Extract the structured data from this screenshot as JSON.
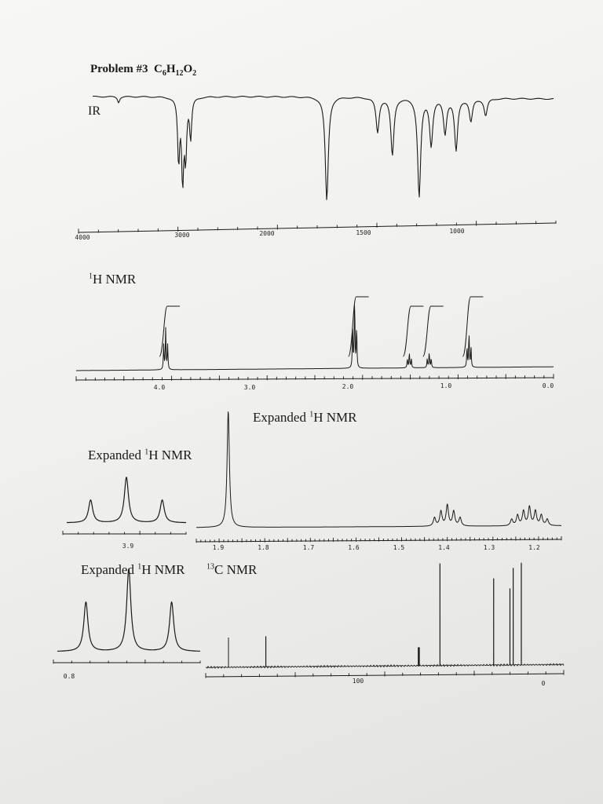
{
  "title": {
    "problem": "Problem #3",
    "formula_c": "C",
    "formula_c_sub": "6",
    "formula_h": "H",
    "formula_h_sub": "12",
    "formula_o": "O",
    "formula_o_sub": "2"
  },
  "labels": {
    "ir": "IR",
    "h_sup": "1",
    "h_nmr": "H NMR",
    "expanded": "Expanded ",
    "c_sup": "13",
    "c_nmr": "C NMR"
  },
  "colors": {
    "ink": "#1a1a1a",
    "paper": "#f4f4f2"
  },
  "chart_data": [
    {
      "type": "line",
      "name": "IR",
      "title": "IR",
      "xlabel": "",
      "ylabel": "",
      "x_ticks": [
        "4000",
        "3000",
        "2000",
        "1500",
        "1000"
      ],
      "xlim": [
        4000,
        500
      ],
      "scale_break_at": 2000,
      "absorptions": [
        {
          "x": 3600,
          "depth": 0.05
        },
        {
          "x": 3000,
          "depth": 0.55
        },
        {
          "x": 2960,
          "depth": 0.7
        },
        {
          "x": 2930,
          "depth": 0.5
        },
        {
          "x": 2880,
          "depth": 0.35
        },
        {
          "x": 1740,
          "depth": 0.9
        },
        {
          "x": 1465,
          "depth": 0.3
        },
        {
          "x": 1385,
          "depth": 0.5
        },
        {
          "x": 1240,
          "depth": 0.85
        },
        {
          "x": 1175,
          "depth": 0.4
        },
        {
          "x": 1100,
          "depth": 0.3
        },
        {
          "x": 1040,
          "depth": 0.45
        },
        {
          "x": 960,
          "depth": 0.2
        },
        {
          "x": 880,
          "depth": 0.15
        }
      ]
    },
    {
      "type": "line",
      "name": "1H NMR",
      "title": "1H NMR",
      "xlabel": "",
      "ylabel": "",
      "x_ticks": [
        "4.0",
        "3.0",
        "2.0",
        "1.0",
        "0.0"
      ],
      "xlim": [
        4.8,
        0
      ],
      "peaks": [
        {
          "ppm": 3.9,
          "height": 0.55,
          "integral": 2
        },
        {
          "ppm": 2.0,
          "height": 0.9,
          "integral": 3
        },
        {
          "ppm": 1.45,
          "height": 0.2,
          "integral": 2
        },
        {
          "ppm": 1.25,
          "height": 0.2,
          "integral": 2
        },
        {
          "ppm": 0.85,
          "height": 0.45,
          "integral": 3
        }
      ]
    },
    {
      "type": "line",
      "name": "Expanded 1H NMR 3.9",
      "title": "Expanded 1H NMR",
      "x_ticks": [
        "3.9"
      ],
      "multiplet": "triplet",
      "center": 3.9,
      "heights": [
        0.5,
        1.0,
        0.5
      ]
    },
    {
      "type": "line",
      "name": "Expanded 1H NMR 1.2-1.9",
      "title": "Expanded 1H NMR",
      "x_ticks": [
        "1.9",
        "1.8",
        "1.7",
        "1.6",
        "1.5",
        "1.4",
        "1.3",
        "1.2"
      ],
      "xlim": [
        1.95,
        1.15
      ],
      "peaks": [
        {
          "ppm": 1.88,
          "height": 1.0
        },
        {
          "ppm": 1.4,
          "height": 0.18,
          "multiplet": "pentet"
        },
        {
          "ppm": 1.22,
          "height": 0.18,
          "multiplet": "sextet"
        }
      ]
    },
    {
      "type": "line",
      "name": "Expanded 1H NMR 0.8",
      "title": "Expanded 1H NMR",
      "x_ticks": [
        "0.8"
      ],
      "multiplet": "triplet",
      "center": 0.85,
      "heights": [
        0.6,
        1.0,
        0.6
      ]
    },
    {
      "type": "bar",
      "name": "13C NMR",
      "title": "13C NMR",
      "x_ticks": [
        "100",
        "0"
      ],
      "xlim": [
        220,
        0
      ],
      "peaks": [
        {
          "ppm": 171,
          "height": 0.3
        },
        {
          "ppm": 77,
          "height": 0.18
        },
        {
          "ppm": 64,
          "height": 1.0
        },
        {
          "ppm": 31,
          "height": 0.85
        },
        {
          "ppm": 21,
          "height": 0.75
        },
        {
          "ppm": 19,
          "height": 0.95
        },
        {
          "ppm": 14,
          "height": 1.0
        }
      ]
    }
  ]
}
